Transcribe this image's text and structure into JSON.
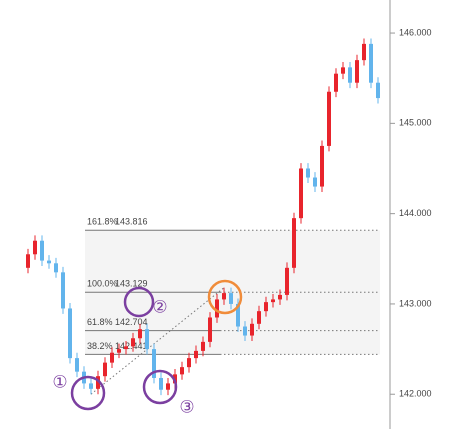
{
  "chart_data": {
    "type": "candlestick",
    "up_color": "#e8242c",
    "down_color": "#62b4ec",
    "ylim": [
      141.615,
      146.366
    ],
    "yticks": [
      {
        "value": 142,
        "label": "142.000"
      },
      {
        "value": 143,
        "label": "143.000"
      },
      {
        "value": 144,
        "label": "144.000"
      },
      {
        "value": 145,
        "label": "145.000"
      },
      {
        "value": 146,
        "label": "146.000"
      }
    ],
    "open": [
      143.4,
      143.55,
      143.7,
      143.48,
      143.45,
      143.35,
      142.95,
      142.4,
      142.25,
      142.12,
      142.06,
      142.2,
      142.35,
      142.46,
      142.5,
      142.53,
      142.62,
      142.72,
      142.5,
      142.18,
      142.05,
      142.12,
      142.22,
      142.3,
      142.4,
      142.48,
      142.58,
      142.85,
      143.05,
      143.12,
      143.0,
      142.75,
      142.65,
      142.78,
      142.92,
      143.02,
      143.05,
      143.1,
      143.4,
      143.95,
      144.5,
      144.4,
      144.3,
      144.75,
      145.35,
      145.55,
      145.62,
      145.45,
      145.7,
      145.88,
      145.45
    ],
    "high": [
      143.61,
      143.76,
      143.76,
      143.54,
      143.51,
      143.41,
      143.01,
      142.46,
      142.31,
      142.18,
      142.26,
      142.41,
      142.52,
      142.56,
      142.59,
      142.68,
      142.78,
      142.78,
      142.56,
      142.24,
      142.18,
      142.28,
      142.36,
      142.46,
      142.54,
      142.64,
      142.91,
      143.11,
      143.18,
      143.18,
      143.06,
      142.81,
      142.84,
      142.98,
      143.08,
      143.11,
      143.16,
      143.46,
      144.01,
      144.56,
      144.56,
      144.46,
      144.81,
      145.41,
      145.61,
      145.68,
      145.68,
      145.76,
      145.94,
      145.94,
      145.51
    ],
    "low": [
      143.34,
      143.49,
      143.42,
      143.39,
      143.29,
      142.89,
      142.34,
      142.19,
      142.06,
      142.0,
      142.0,
      142.14,
      142.29,
      142.4,
      142.44,
      142.47,
      142.56,
      142.44,
      142.12,
      141.99,
      141.99,
      142.06,
      142.16,
      142.24,
      142.34,
      142.42,
      142.52,
      142.79,
      142.99,
      142.94,
      142.69,
      142.59,
      142.59,
      142.72,
      142.86,
      142.96,
      142.99,
      143.04,
      143.34,
      143.89,
      144.34,
      144.24,
      144.24,
      144.69,
      145.29,
      145.49,
      145.39,
      145.39,
      145.64,
      145.39,
      145.22
    ],
    "close": [
      143.55,
      143.7,
      143.48,
      143.45,
      143.35,
      142.95,
      142.4,
      142.25,
      142.12,
      142.06,
      142.2,
      142.35,
      142.46,
      142.5,
      142.53,
      142.62,
      142.72,
      142.5,
      142.18,
      142.05,
      142.12,
      142.22,
      142.3,
      142.4,
      142.48,
      142.58,
      142.85,
      143.05,
      143.12,
      143.0,
      142.75,
      142.65,
      142.78,
      142.92,
      143.02,
      143.05,
      143.1,
      143.4,
      143.95,
      144.5,
      144.4,
      144.3,
      144.75,
      145.35,
      145.55,
      145.62,
      145.45,
      145.7,
      145.88,
      145.45,
      145.28
    ],
    "fib_levels": [
      {
        "ratio": "161.8%",
        "value": 143.816
      },
      {
        "ratio": "100.0%",
        "value": 143.129
      },
      {
        "ratio": "61.8%",
        "value": 142.704
      },
      {
        "ratio": "38.2%",
        "value": 142.441
      }
    ],
    "annotations": [
      "①",
      "②",
      "③"
    ]
  }
}
